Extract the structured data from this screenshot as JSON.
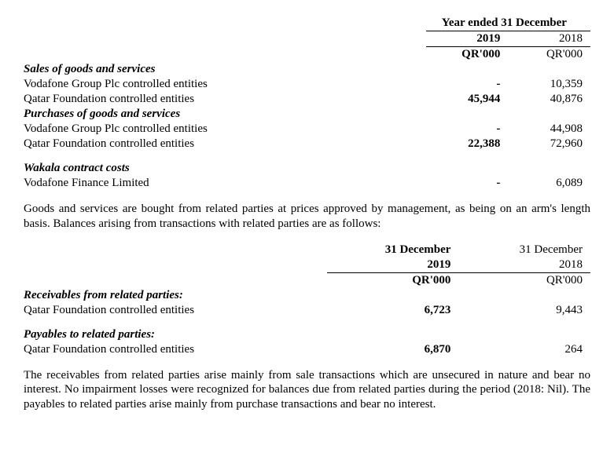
{
  "table1": {
    "period_header": "Year ended 31 December",
    "year_current": "2019",
    "year_prior": "2018",
    "unit_current": "QR'000",
    "unit_prior": "QR'000",
    "sections": {
      "sales_header": "Sales of goods and services",
      "sales_row1_label": "Vodafone Group Plc controlled entities",
      "sales_row1_cur": "-",
      "sales_row1_pri": "10,359",
      "sales_row2_label": "Qatar Foundation controlled entities",
      "sales_row2_cur": "45,944",
      "sales_row2_pri": "40,876",
      "purch_header": "Purchases of goods and services",
      "purch_row1_label": "Vodafone Group Plc controlled entities",
      "purch_row1_cur": "-",
      "purch_row1_pri": "44,908",
      "purch_row2_label": "Qatar Foundation controlled entities",
      "purch_row2_cur": "22,388",
      "purch_row2_pri": "72,960",
      "wakala_header": "Wakala contract costs",
      "wakala_row1_label": "Vodafone Finance Limited",
      "wakala_row1_cur": "-",
      "wakala_row1_pri": "6,089"
    }
  },
  "para1": "Goods and services are bought from related parties at prices approved by management, as being on an arm's length basis. Balances arising from transactions with related parties are as follows:",
  "table2": {
    "date_label_cur": "31 December",
    "date_label_pri": "31 December",
    "year_current": "2019",
    "year_prior": "2018",
    "unit_current": "QR'000",
    "unit_prior": "QR'000",
    "recv_header": "Receivables from related parties:",
    "recv_row1_label": "Qatar Foundation controlled entities",
    "recv_row1_cur": "6,723",
    "recv_row1_pri": "9,443",
    "pay_header": "Payables to related parties:",
    "pay_row1_label": "Qatar Foundation controlled entities",
    "pay_row1_cur": "6,870",
    "pay_row1_pri": "264"
  },
  "para2": "The receivables from related parties arise mainly from sale transactions which are unsecured in nature and bear no interest. No impairment losses were recognized for balances due from related parties during the period (2018: Nil). The payables to related parties arise mainly from purchase transactions and bear no interest."
}
